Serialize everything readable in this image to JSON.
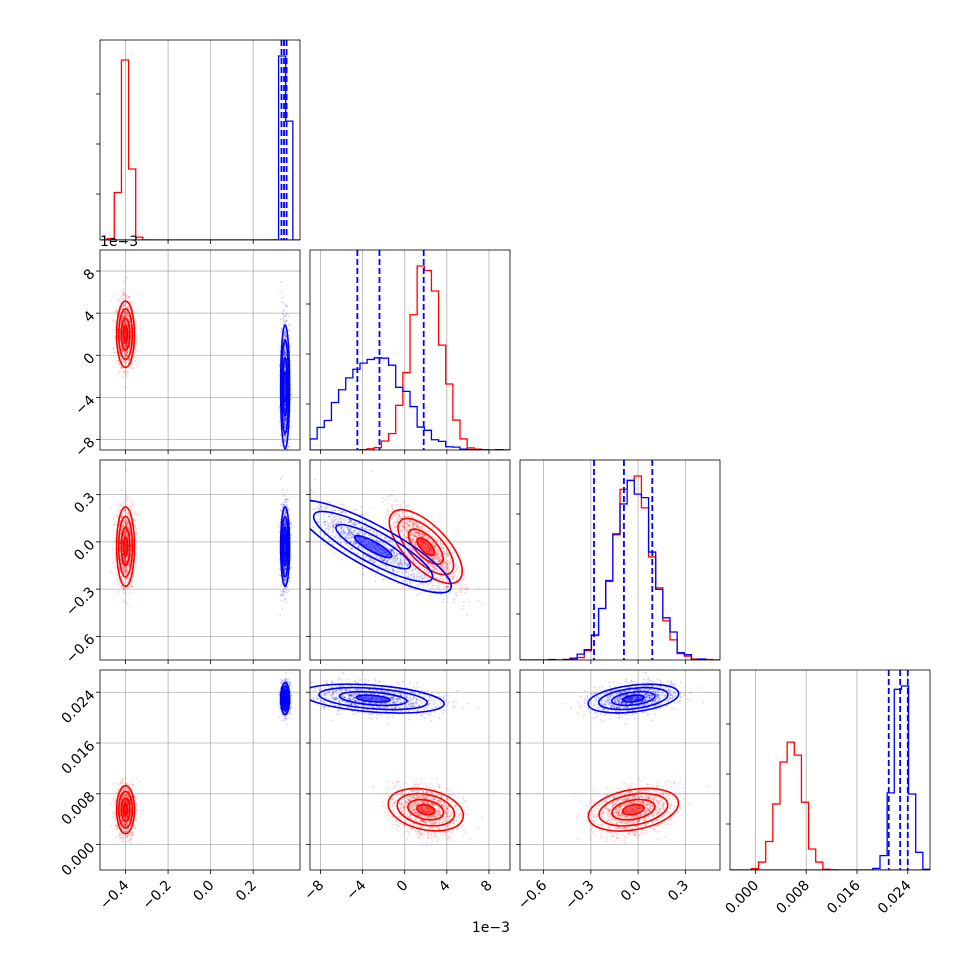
{
  "chart_data": {
    "type": "corner",
    "colors": {
      "red": "#ff0000",
      "blue": "#0000ff",
      "grid": "#b0b0b0",
      "axes": "#000000"
    },
    "series": [
      {
        "name": "",
        "color": "#ff0000",
        "means": [
          -0.4,
          0.002,
          -0.03,
          0.0055
        ],
        "stds": [
          0.02,
          0.0015,
          0.12,
          0.0018
        ]
      },
      {
        "name": "",
        "color": "#0000ff",
        "means": [
          0.35,
          -0.003,
          -0.03,
          0.023
        ],
        "stds": [
          0.01,
          0.0028,
          0.12,
          0.0012
        ]
      }
    ],
    "params": [
      {
        "range": [
          -0.52,
          0.42
        ],
        "ticks": [
          -0.4,
          -0.2,
          0.0,
          0.2
        ],
        "tick_labels": [
          "−0.4",
          "−0.2",
          "0.0",
          "0.2"
        ],
        "offset_text": ""
      },
      {
        "range": [
          -0.009,
          0.01
        ],
        "ticks": [
          -0.008,
          -0.004,
          0.0,
          0.004,
          0.008
        ],
        "tick_labels": [
          "−8",
          "−4",
          "0",
          "4",
          "8"
        ],
        "offset_text": "1e−3"
      },
      {
        "range": [
          -0.75,
          0.52
        ],
        "ticks": [
          -0.6,
          -0.3,
          0.0,
          0.3
        ],
        "tick_labels": [
          "−0.6",
          "−0.3",
          "0.0",
          "0.3"
        ],
        "offset_text": ""
      },
      {
        "range": [
          -0.004,
          0.0275
        ],
        "ticks": [
          0.0,
          0.008,
          0.016,
          0.024
        ],
        "tick_labels": [
          "0.000",
          "0.008",
          "0.016",
          "0.024"
        ],
        "offset_text": ""
      }
    ],
    "quantile_lines": [
      [
        0.333,
        0.345,
        0.357
      ],
      [
        -0.0045,
        -0.0024,
        0.0018
      ],
      [
        -0.28,
        -0.09,
        0.09
      ],
      [
        0.021,
        0.0228,
        0.024
      ]
    ],
    "quantile_color": "#0000ff",
    "hist_bins": 20,
    "grid": true
  }
}
